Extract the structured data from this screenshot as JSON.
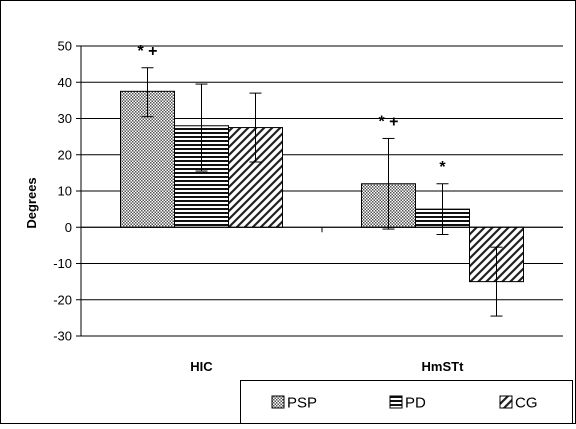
{
  "chart_data": {
    "type": "bar",
    "title": "",
    "xlabel": "",
    "ylabel": "Degrees",
    "ylim": [
      -30,
      50
    ],
    "yticks": [
      50,
      40,
      30,
      20,
      10,
      0,
      -10,
      -20,
      -30
    ],
    "categories": [
      "HIC",
      "HmSTt"
    ],
    "grid": true,
    "legend_position": "bottom-right",
    "series": [
      {
        "name": "PSP",
        "pattern": "dots",
        "values": [
          37.5,
          12
        ],
        "err_low": [
          30.5,
          -0.5
        ],
        "err_high": [
          44,
          24.5
        ]
      },
      {
        "name": "PD",
        "pattern": "horizontal",
        "values": [
          28,
          5
        ],
        "err_low": [
          15.5,
          -2
        ],
        "err_high": [
          39.5,
          12
        ]
      },
      {
        "name": "CG",
        "pattern": "diagonal",
        "values": [
          27.5,
          -15
        ],
        "err_low": [
          18,
          -24.5
        ],
        "err_high": [
          37,
          -5.5
        ]
      }
    ],
    "annotations": [
      {
        "text": "* +",
        "category": 0,
        "series": 0
      },
      {
        "text": "* +",
        "category": 1,
        "series": 0
      },
      {
        "text": "*",
        "category": 1,
        "series": 1
      }
    ]
  }
}
